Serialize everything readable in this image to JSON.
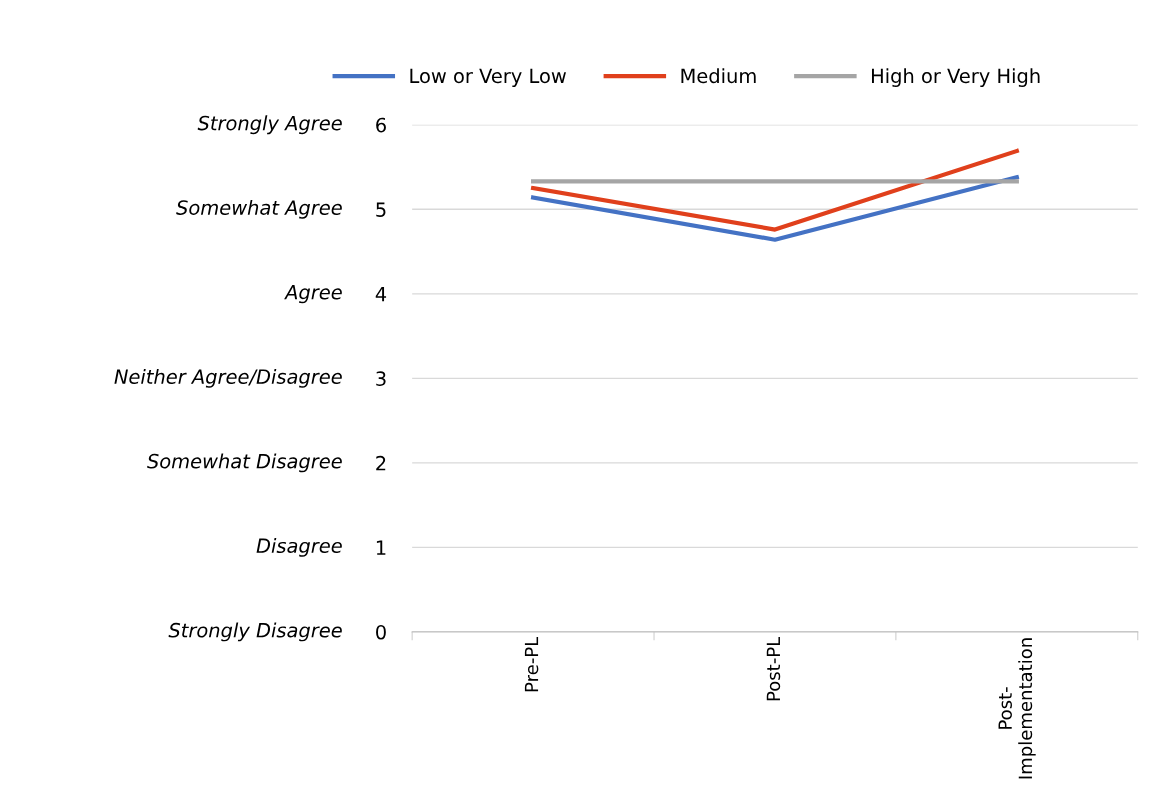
{
  "chart_data": {
    "type": "line",
    "categories": [
      "Pre-PL",
      "Post-PL",
      "Post-Implementation"
    ],
    "series": [
      {
        "name": "Low or Very Low",
        "color": "#4472c4",
        "values": [
          5.14,
          4.64,
          5.38
        ]
      },
      {
        "name": "Medium",
        "color": "#e0401c",
        "values": [
          5.25,
          4.76,
          5.69
        ]
      },
      {
        "name": "High or Very High",
        "color": "#a5a5a5",
        "values": [
          5.33,
          5.33,
          5.33
        ]
      }
    ],
    "ylim": [
      0,
      6
    ],
    "yticks": [
      0,
      1,
      2,
      3,
      4,
      5,
      6
    ],
    "annotations": [
      "Strongly Disagree",
      "Disagree",
      "Somewhat Disagree",
      "Neither Agree/Disagree",
      "Agree",
      "Somewhat Agree",
      "Strongly Agree"
    ],
    "grid": "y",
    "legend": "top",
    "marker": "none",
    "line_style": "solid"
  }
}
